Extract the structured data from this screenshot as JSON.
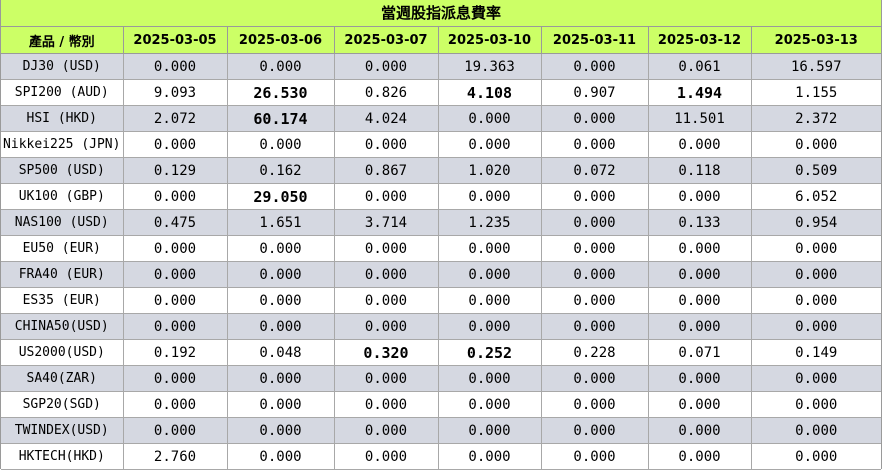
{
  "title": "當週股指派息費率",
  "columns": [
    "產品 / 幣別",
    "2025-03-05",
    "2025-03-06",
    "2025-03-07",
    "2025-03-10",
    "2025-03-11",
    "2025-03-12",
    "2025-03-13"
  ],
  "rows": [
    {
      "product": "DJ30 (USD)",
      "values": [
        "0.000",
        "0.000",
        "0.000",
        "19.363",
        "0.000",
        "0.061",
        "16.597"
      ],
      "bold": []
    },
    {
      "product": "SPI200 (AUD)",
      "values": [
        "9.093",
        "26.530",
        "0.826",
        "4.108",
        "0.907",
        "1.494",
        "1.155"
      ],
      "bold": [
        1,
        3,
        5
      ]
    },
    {
      "product": "HSI (HKD)",
      "values": [
        "2.072",
        "60.174",
        "4.024",
        "0.000",
        "0.000",
        "11.501",
        "2.372"
      ],
      "bold": [
        1
      ]
    },
    {
      "product": "Nikkei225 (JPN)",
      "values": [
        "0.000",
        "0.000",
        "0.000",
        "0.000",
        "0.000",
        "0.000",
        "0.000"
      ],
      "bold": []
    },
    {
      "product": "SP500 (USD)",
      "values": [
        "0.129",
        "0.162",
        "0.867",
        "1.020",
        "0.072",
        "0.118",
        "0.509"
      ],
      "bold": []
    },
    {
      "product": "UK100 (GBP)",
      "values": [
        "0.000",
        "29.050",
        "0.000",
        "0.000",
        "0.000",
        "0.000",
        "6.052"
      ],
      "bold": [
        1
      ]
    },
    {
      "product": "NAS100 (USD)",
      "values": [
        "0.475",
        "1.651",
        "3.714",
        "1.235",
        "0.000",
        "0.133",
        "0.954"
      ],
      "bold": []
    },
    {
      "product": "EU50 (EUR)",
      "values": [
        "0.000",
        "0.000",
        "0.000",
        "0.000",
        "0.000",
        "0.000",
        "0.000"
      ],
      "bold": []
    },
    {
      "product": "FRA40 (EUR)",
      "values": [
        "0.000",
        "0.000",
        "0.000",
        "0.000",
        "0.000",
        "0.000",
        "0.000"
      ],
      "bold": []
    },
    {
      "product": "ES35 (EUR)",
      "values": [
        "0.000",
        "0.000",
        "0.000",
        "0.000",
        "0.000",
        "0.000",
        "0.000"
      ],
      "bold": []
    },
    {
      "product": "CHINA50(USD)",
      "values": [
        "0.000",
        "0.000",
        "0.000",
        "0.000",
        "0.000",
        "0.000",
        "0.000"
      ],
      "bold": []
    },
    {
      "product": "US2000(USD)",
      "values": [
        "0.192",
        "0.048",
        "0.320",
        "0.252",
        "0.228",
        "0.071",
        "0.149"
      ],
      "bold": [
        2,
        3
      ]
    },
    {
      "product": "SA40(ZAR)",
      "values": [
        "0.000",
        "0.000",
        "0.000",
        "0.000",
        "0.000",
        "0.000",
        "0.000"
      ],
      "bold": []
    },
    {
      "product": "SGP20(SGD)",
      "values": [
        "0.000",
        "0.000",
        "0.000",
        "0.000",
        "0.000",
        "0.000",
        "0.000"
      ],
      "bold": []
    },
    {
      "product": "TWINDEX(USD)",
      "values": [
        "0.000",
        "0.000",
        "0.000",
        "0.000",
        "0.000",
        "0.000",
        "0.000"
      ],
      "bold": []
    },
    {
      "product": "HKTECH(HKD)",
      "values": [
        "2.760",
        "0.000",
        "0.000",
        "0.000",
        "0.000",
        "0.000",
        "0.000"
      ],
      "bold": []
    }
  ],
  "colors": {
    "header_bg": "#ccff66",
    "row_alt_bg": "#d5d8e1",
    "row_bg": "#ffffff"
  }
}
